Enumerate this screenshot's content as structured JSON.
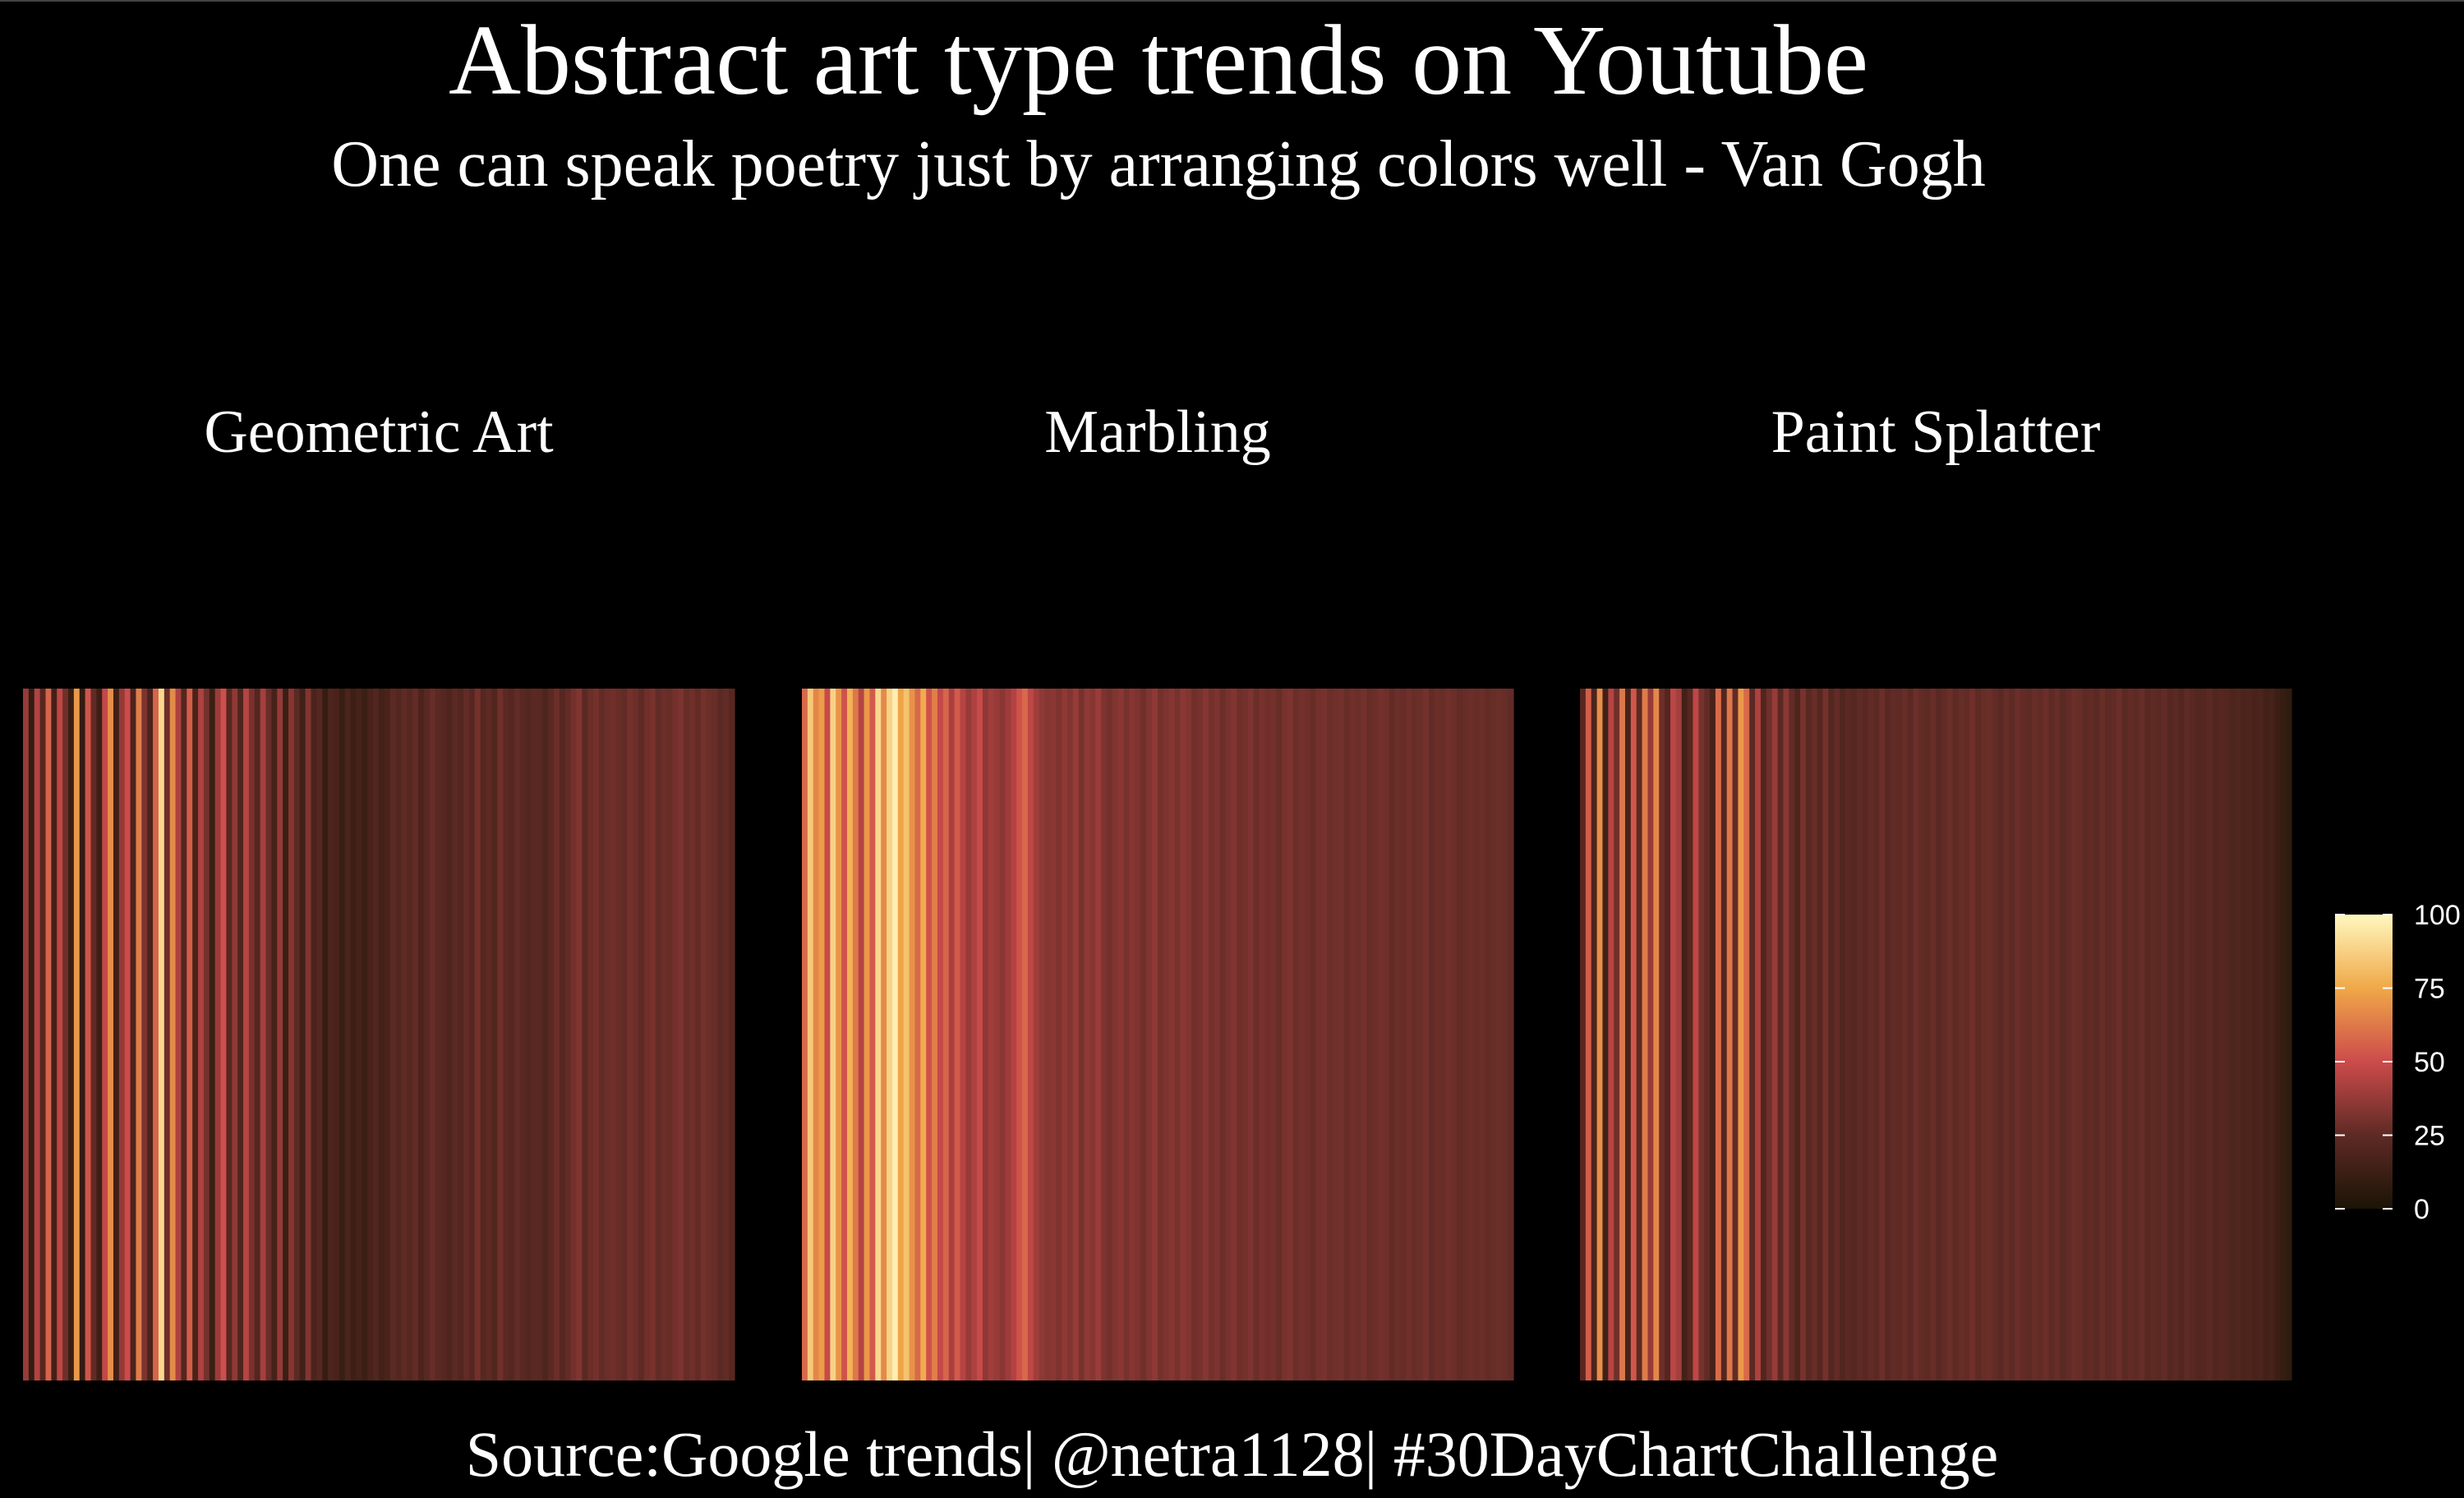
{
  "chart_data": {
    "type": "heatmap",
    "title": "Abstract art type trends on Youtube",
    "subtitle": "One can speak poetry just by arranging colors well - Van Gogh",
    "caption": "Source:Google trends| @netra1128| #30DayChartChallenge",
    "xlabel": "",
    "ylabel": "",
    "grid": false,
    "legend_position": "right",
    "color_scale": {
      "min": 0,
      "max": 100,
      "ticks": [
        0,
        25,
        50,
        75,
        100
      ],
      "stops": [
        {
          "value": 0,
          "color": "#1b1406"
        },
        {
          "value": 25,
          "color": "#5e2a24"
        },
        {
          "value": 50,
          "color": "#cc4b4b"
        },
        {
          "value": 75,
          "color": "#f0a848"
        },
        {
          "value": 100,
          "color": "#fff8c0"
        }
      ]
    },
    "facets": [
      {
        "name": "Geometric Art",
        "values": [
          38,
          9,
          44,
          22,
          57,
          15,
          47,
          29,
          12,
          71,
          9,
          53,
          26,
          13,
          48,
          68,
          14,
          37,
          50,
          18,
          64,
          32,
          18,
          57,
          90,
          28,
          67,
          43,
          21,
          55,
          17,
          43,
          30,
          12,
          39,
          51,
          22,
          36,
          19,
          45,
          31,
          21,
          41,
          27,
          16,
          37,
          12,
          34,
          24,
          14,
          33,
          18,
          22,
          10,
          19,
          17,
          11,
          18,
          13,
          16,
          12,
          17,
          20,
          15,
          17,
          24,
          21,
          25,
          22,
          26,
          18,
          23,
          27,
          24,
          22,
          19,
          24,
          21,
          26,
          22,
          30,
          22,
          25,
          20,
          29,
          24,
          22,
          26,
          23,
          21,
          24,
          23,
          19,
          24,
          28,
          22,
          26,
          30,
          33,
          24,
          28,
          30,
          26,
          28,
          29,
          27,
          26,
          30,
          28,
          25,
          29,
          31,
          26,
          28,
          27,
          30,
          32,
          27,
          29,
          26,
          30,
          28,
          27,
          24,
          26,
          22
        ]
      },
      {
        "name": "Marbling",
        "values": [
          58,
          85,
          66,
          72,
          49,
          88,
          70,
          52,
          78,
          62,
          45,
          71,
          54,
          90,
          67,
          88,
          97,
          74,
          83,
          69,
          58,
          76,
          52,
          64,
          48,
          57,
          42,
          54,
          45,
          38,
          43,
          49,
          36,
          40,
          38,
          35,
          39,
          44,
          52,
          58,
          47,
          40,
          36,
          34,
          35,
          32,
          36,
          33,
          38,
          31,
          36,
          34,
          39,
          32,
          30,
          33,
          35,
          31,
          34,
          32,
          29,
          33,
          36,
          30,
          32,
          34,
          31,
          35,
          33,
          29,
          31,
          34,
          30,
          32,
          28,
          31,
          33,
          29,
          30,
          32,
          28,
          31,
          29,
          30,
          27,
          31,
          32,
          28,
          30,
          29,
          27,
          30,
          31,
          28,
          29,
          30,
          27,
          29,
          28,
          30,
          27,
          28,
          30,
          29,
          26,
          28,
          27,
          29,
          27,
          28,
          30,
          26,
          28,
          27,
          29,
          28,
          26,
          27,
          28,
          27,
          28,
          26,
          27,
          28,
          27,
          26
        ]
      },
      {
        "name": "Paint Splatter",
        "values": [
          22,
          55,
          18,
          68,
          14,
          45,
          29,
          62,
          17,
          53,
          24,
          63,
          38,
          66,
          28,
          21,
          46,
          41,
          15,
          22,
          47,
          31,
          26,
          17,
          59,
          21,
          62,
          26,
          71,
          58,
          24,
          43,
          20,
          29,
          38,
          24,
          35,
          26,
          19,
          31,
          23,
          27,
          22,
          30,
          21,
          26,
          20,
          24,
          22,
          25,
          23,
          26,
          24,
          28,
          23,
          26,
          25,
          27,
          24,
          28,
          26,
          25,
          27,
          24,
          26,
          28,
          25,
          27,
          26,
          29,
          25,
          27,
          28,
          26,
          24,
          27,
          25,
          28,
          26,
          25,
          27,
          26,
          28,
          25,
          27,
          24,
          26,
          28,
          27,
          25,
          26,
          24,
          27,
          25,
          26,
          28,
          24,
          26,
          25,
          27,
          23,
          25,
          24,
          26,
          22,
          24,
          21,
          25,
          23,
          21,
          22,
          24,
          20,
          22,
          21,
          19,
          20,
          18,
          19,
          17,
          18,
          15,
          16,
          12,
          10,
          8
        ]
      }
    ]
  }
}
